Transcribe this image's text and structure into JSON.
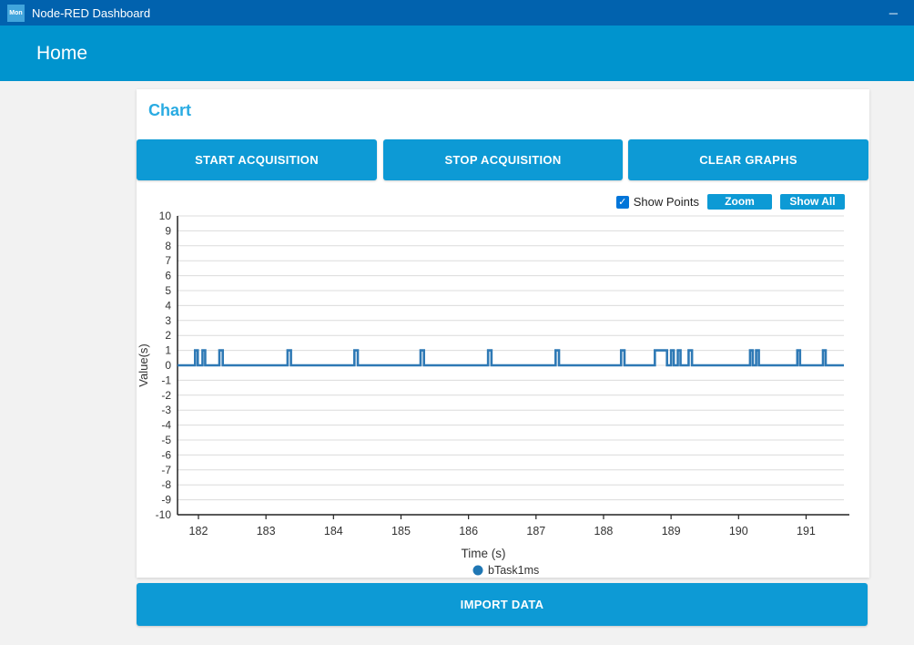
{
  "window": {
    "title": "Node-RED Dashboard",
    "icon_label": "Mon",
    "minimize_icon": "─"
  },
  "header": {
    "title": "Home"
  },
  "card": {
    "title": "Chart",
    "buttons": [
      {
        "label": "START ACQUISITION"
      },
      {
        "label": "STOP ACQUISITION"
      },
      {
        "label": "CLEAR GRAPHS"
      }
    ],
    "controls": {
      "show_points_label": "Show Points",
      "show_points_checked": true,
      "check_icon": "✓",
      "zoom_label": "Zoom",
      "show_all_label": "Show All"
    }
  },
  "import_button": {
    "label": "IMPORT DATA"
  },
  "colors": {
    "titlebar": "#0162ae",
    "header": "#0094ce",
    "button": "#0d9ad5",
    "card_title": "#29abe2",
    "line": "#2e79b5",
    "legend_dot": "#1f77b4"
  },
  "chart_data": {
    "type": "line",
    "title": "",
    "xlabel": "Time (s)",
    "ylabel": "Value(s)",
    "xlim": [
      181.69,
      191.56
    ],
    "ylim": [
      -10,
      10
    ],
    "x_ticks": [
      182,
      183,
      184,
      185,
      186,
      187,
      188,
      189,
      190,
      191
    ],
    "y_ticks": [
      -10,
      -9,
      -8,
      -7,
      -6,
      -5,
      -4,
      -3,
      -2,
      -1,
      0,
      1,
      2,
      3,
      4,
      5,
      6,
      7,
      8,
      9,
      10
    ],
    "grid": true,
    "legend_position": "bottom",
    "legend": [
      {
        "name": "bTask1ms",
        "color": "#1f77b4"
      }
    ],
    "series": [
      {
        "name": "bTask1ms",
        "baseline": 0,
        "pulse_height": 1,
        "pulses": [
          [
            181.95,
            181.99
          ],
          [
            182.06,
            182.1
          ],
          [
            182.31,
            182.36
          ],
          [
            183.32,
            183.37
          ],
          [
            184.31,
            184.36
          ],
          [
            185.29,
            185.34
          ],
          [
            186.29,
            186.34
          ],
          [
            187.29,
            187.34
          ],
          [
            188.26,
            188.31
          ],
          [
            188.76,
            188.94
          ],
          [
            189.0,
            189.04
          ],
          [
            189.1,
            189.14
          ],
          [
            189.26,
            189.31
          ],
          [
            190.17,
            190.21
          ],
          [
            190.26,
            190.3
          ],
          [
            190.87,
            190.91
          ],
          [
            191.25,
            191.29
          ]
        ]
      }
    ],
    "line_color": "#2e79b5",
    "grid_color": "#dcdcdc",
    "axis_color": "#222",
    "label_color": "#333"
  }
}
